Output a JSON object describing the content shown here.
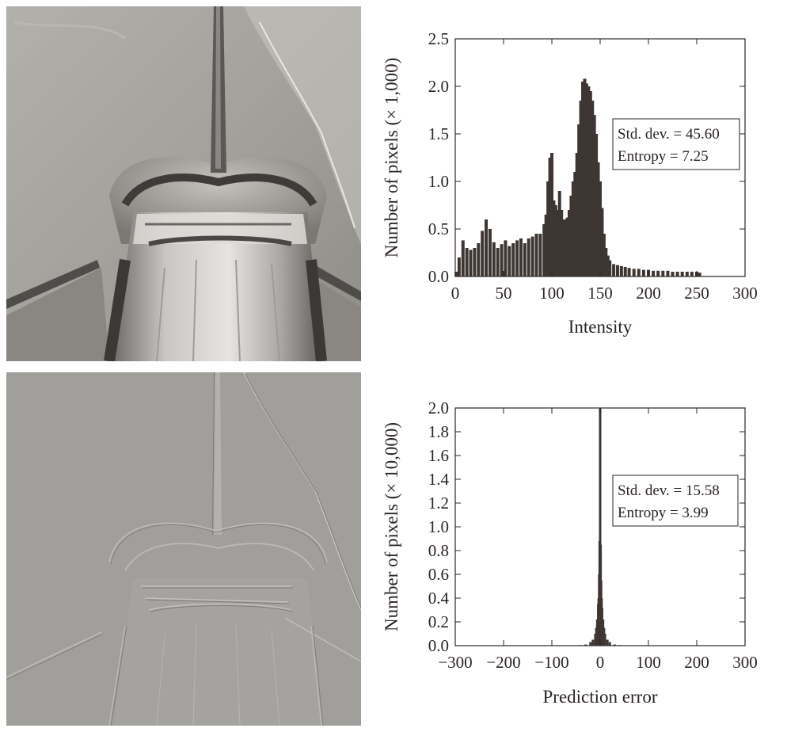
{
  "chart_data": [
    {
      "type": "bar",
      "xlabel": "Intensity",
      "ylabel": "Number of pixels (× 1,000)",
      "xlim": [
        0,
        300
      ],
      "ylim": [
        0,
        2.5
      ],
      "xticks": [
        0,
        50,
        100,
        150,
        200,
        250,
        300
      ],
      "yticks": [
        "0.0",
        "0.5",
        "1.0",
        "1.5",
        "2.0",
        "2.5"
      ],
      "grid": false,
      "annotation": [
        "Std. dev. = 45.60",
        "Entropy = 7.25"
      ],
      "annotation_position": "upper-right",
      "color": "#3d3633",
      "series": [
        {
          "x": [
            1,
            4,
            8,
            12,
            16,
            20,
            24,
            28,
            32,
            36,
            40,
            44,
            48,
            52,
            56,
            60,
            64,
            68,
            72,
            76,
            80,
            84,
            88,
            92,
            94,
            96,
            98,
            100,
            102,
            104,
            106,
            108,
            110,
            112,
            114,
            116,
            118,
            120,
            122,
            124,
            126,
            128,
            130,
            132,
            134,
            136,
            138,
            140,
            142,
            144,
            146,
            148,
            150,
            152,
            154,
            156,
            158,
            160,
            164,
            168,
            172,
            176,
            180,
            185,
            190,
            195,
            200,
            205,
            210,
            215,
            220,
            225,
            230,
            235,
            240,
            245,
            250,
            253
          ],
          "values": [
            0.05,
            0.2,
            0.38,
            0.3,
            0.28,
            0.3,
            0.35,
            0.48,
            0.6,
            0.5,
            0.36,
            0.3,
            0.34,
            0.38,
            0.32,
            0.35,
            0.38,
            0.4,
            0.35,
            0.4,
            0.42,
            0.45,
            0.45,
            0.55,
            0.65,
            1.0,
            1.25,
            1.3,
            0.8,
            0.75,
            0.7,
            0.9,
            0.7,
            0.6,
            0.6,
            0.62,
            0.7,
            0.85,
            1.0,
            1.1,
            1.3,
            1.6,
            1.85,
            2.05,
            2.08,
            2.03,
            2.0,
            1.95,
            1.85,
            1.7,
            1.5,
            1.2,
            1.0,
            0.72,
            0.45,
            0.3,
            0.22,
            0.17,
            0.13,
            0.12,
            0.11,
            0.1,
            0.09,
            0.08,
            0.08,
            0.07,
            0.07,
            0.06,
            0.06,
            0.06,
            0.06,
            0.05,
            0.05,
            0.05,
            0.05,
            0.05,
            0.05,
            0.04
          ]
        }
      ]
    },
    {
      "type": "bar",
      "xlabel": "Prediction error",
      "ylabel": "Number of pixels (× 10,000)",
      "xlim": [
        -300,
        300
      ],
      "ylim": [
        0,
        2.0
      ],
      "xticks": [
        "−300",
        "−200",
        "−100",
        "0",
        "100",
        "200",
        "300"
      ],
      "yticks": [
        "0.0",
        "0.2",
        "0.4",
        "0.6",
        "0.8",
        "1.0",
        "1.2",
        "1.4",
        "1.6",
        "1.8",
        "2.0"
      ],
      "grid": false,
      "annotation": [
        "Std. dev. = 15.58",
        "Entropy = 3.99"
      ],
      "annotation_position": "upper-right",
      "color": "#3d3633",
      "series": [
        {
          "x": [
            -40,
            -30,
            -20,
            -15,
            -10,
            -8,
            -6,
            -4,
            -3,
            -2,
            -1,
            0,
            1,
            2,
            3,
            4,
            6,
            8,
            10,
            15,
            20,
            30,
            40
          ],
          "values": [
            0.005,
            0.01,
            0.03,
            0.05,
            0.1,
            0.15,
            0.22,
            0.35,
            0.4,
            0.6,
            0.88,
            2.0,
            0.85,
            0.55,
            0.4,
            0.32,
            0.22,
            0.15,
            0.1,
            0.05,
            0.03,
            0.01,
            0.005
          ]
        }
      ]
    }
  ]
}
